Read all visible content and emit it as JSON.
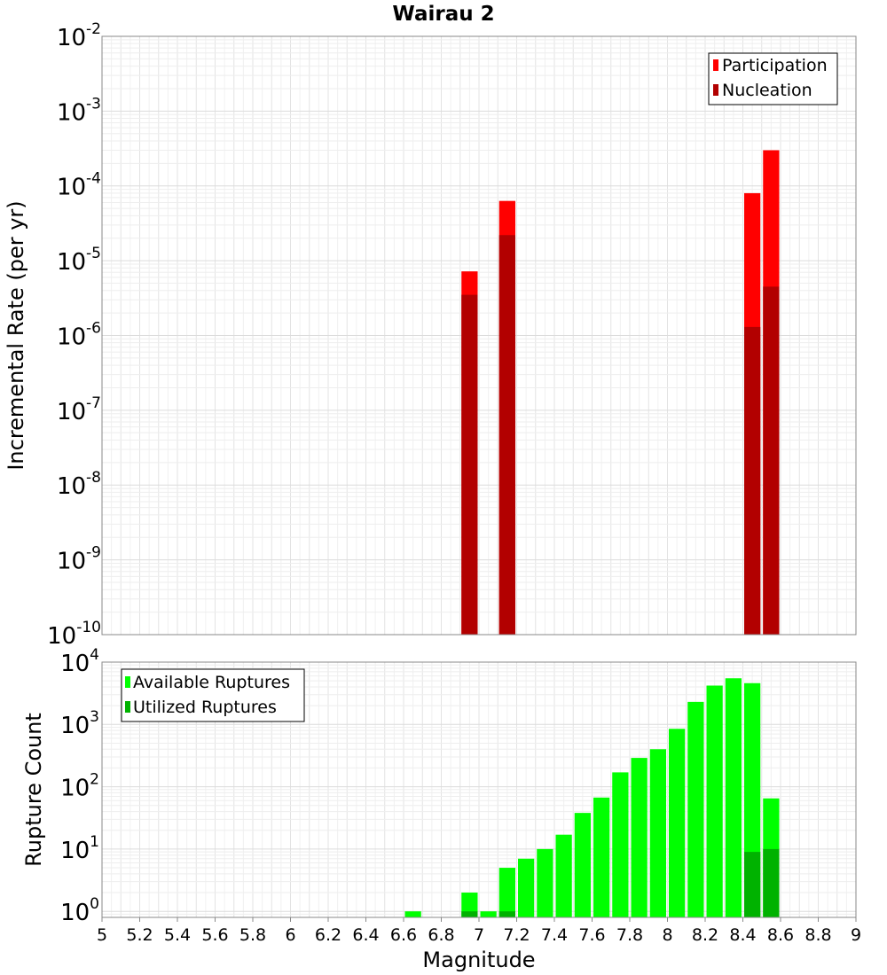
{
  "chart_data": [
    {
      "type": "bar",
      "title": "Wairau 2",
      "xlabel": "",
      "ylabel": "Incremental Rate (per yr)",
      "yscale": "log",
      "ylim": [
        1e-10,
        0.01
      ],
      "xlim": [
        5,
        9
      ],
      "y_tick_bases": [
        "10",
        "10",
        "10",
        "10",
        "10",
        "10",
        "10",
        "10",
        "10"
      ],
      "y_tick_exponents": [
        "-10",
        "-9",
        "-8",
        "-7",
        "-6",
        "-5",
        "-4",
        "-3",
        "-2"
      ],
      "grid": true,
      "legend_position": "top-right",
      "legend": [
        "Participation",
        "Nucleation"
      ],
      "colors": {
        "participation": "#ff0000",
        "nucleation": "#b20000"
      },
      "bin_width": 0.1,
      "series": [
        {
          "name": "Participation",
          "x": [
            6.95,
            7.15,
            8.45,
            8.55
          ],
          "values": [
            7.2e-06,
            6.3e-05,
            8e-05,
            0.0003
          ]
        },
        {
          "name": "Nucleation",
          "x": [
            6.95,
            7.15,
            8.45,
            8.55
          ],
          "values": [
            3.5e-06,
            2.2e-05,
            1.3e-06,
            4.5e-06
          ]
        }
      ]
    },
    {
      "type": "bar",
      "title": "",
      "xlabel": "Magnitude",
      "ylabel": "Rupture Count",
      "yscale": "log",
      "ylim": [
        0.8,
        10000
      ],
      "xlim": [
        5,
        9
      ],
      "x_ticks": [
        "5",
        "5.2",
        "5.4",
        "5.6",
        "5.8",
        "6",
        "6.2",
        "6.4",
        "6.6",
        "6.8",
        "7",
        "7.2",
        "7.4",
        "7.6",
        "7.8",
        "8",
        "8.2",
        "8.4",
        "8.6",
        "8.8",
        "9"
      ],
      "y_tick_bases": [
        "10",
        "10",
        "10",
        "10",
        "10"
      ],
      "y_tick_exponents": [
        "0",
        "1",
        "2",
        "3",
        "4"
      ],
      "grid": true,
      "legend_position": "top-left",
      "legend": [
        "Available Ruptures",
        "Utilized Ruptures"
      ],
      "colors": {
        "available": "#00ff00",
        "utilized": "#00b200"
      },
      "bin_width": 0.1,
      "series": [
        {
          "name": "Available Ruptures",
          "x": [
            6.65,
            6.95,
            7.05,
            7.15,
            7.25,
            7.35,
            7.45,
            7.55,
            7.65,
            7.75,
            7.85,
            7.95,
            8.05,
            8.15,
            8.25,
            8.35,
            8.45,
            8.55
          ],
          "values": [
            1,
            2,
            1,
            5,
            7,
            10,
            17,
            38,
            67,
            170,
            290,
            400,
            850,
            2300,
            4200,
            5500,
            4600,
            65
          ]
        },
        {
          "name": "Utilized Ruptures",
          "x": [
            6.95,
            7.15,
            8.45,
            8.55
          ],
          "values": [
            1,
            1,
            9,
            10
          ]
        }
      ]
    }
  ]
}
